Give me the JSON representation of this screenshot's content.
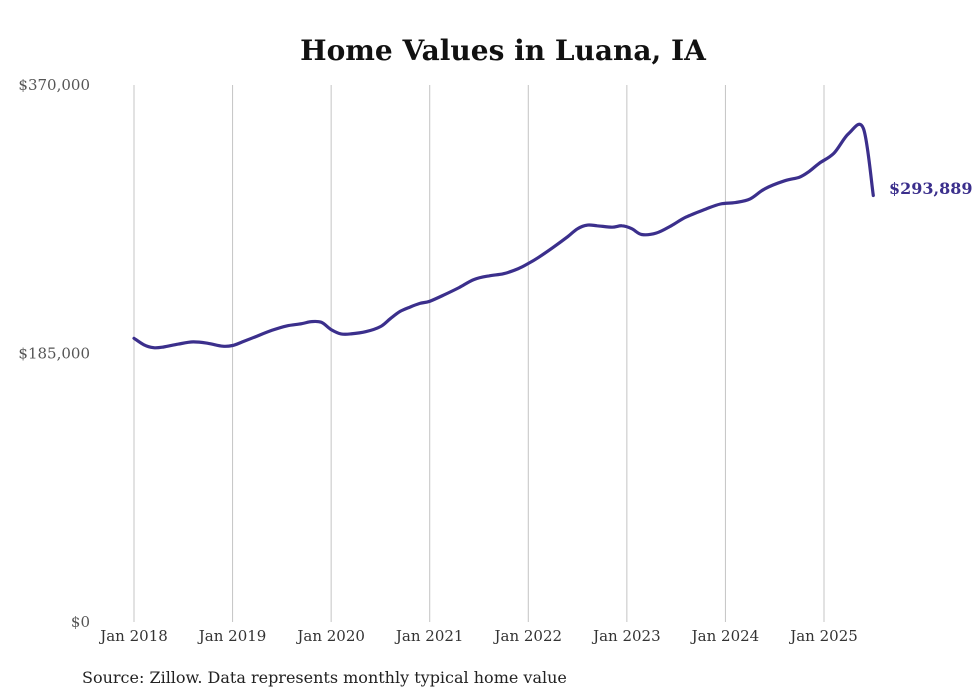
{
  "chart_data": {
    "type": "line",
    "title": "Home Values in Luana, IA",
    "xlabel": "",
    "ylabel": "",
    "ylim": [
      0,
      370000
    ],
    "yticks": [
      {
        "value": 0,
        "label": "$0"
      },
      {
        "value": 185000,
        "label": "$185,000"
      },
      {
        "value": 370000,
        "label": "$370,000"
      }
    ],
    "xticks": [
      {
        "value": 2018,
        "label": "Jan 2018"
      },
      {
        "value": 2019,
        "label": "Jan 2019"
      },
      {
        "value": 2020,
        "label": "Jan 2020"
      },
      {
        "value": 2021,
        "label": "Jan 2021"
      },
      {
        "value": 2022,
        "label": "Jan 2022"
      },
      {
        "value": 2023,
        "label": "Jan 2023"
      },
      {
        "value": 2024,
        "label": "Jan 2024"
      },
      {
        "value": 2025,
        "label": "Jan 2025"
      }
    ],
    "xlim": [
      2017.85,
      2025.85
    ],
    "grid": "vertical",
    "legend": "none",
    "line_color": "#3b2f8c",
    "end_label": "$293,889",
    "series": [
      {
        "x": [
          2018.0,
          2018.1,
          2018.2,
          2018.3,
          2018.45,
          2018.6,
          2018.75,
          2018.9,
          2019.0,
          2019.1,
          2019.25,
          2019.4,
          2019.55,
          2019.7,
          2019.8,
          2019.9,
          2020.0,
          2020.1,
          2020.2,
          2020.35,
          2020.5,
          2020.6,
          2020.7,
          2020.8,
          2020.9,
          2021.0,
          2021.15,
          2021.3,
          2021.45,
          2021.6,
          2021.75,
          2021.9,
          2022.0,
          2022.1,
          2022.25,
          2022.4,
          2022.5,
          2022.6,
          2022.7,
          2022.85,
          2022.95,
          2023.05,
          2023.15,
          2023.3,
          2023.45,
          2023.6,
          2023.8,
          2023.95,
          2024.1,
          2024.25,
          2024.4,
          2024.6,
          2024.75,
          2024.85,
          2024.95,
          2025.1,
          2025.25,
          2025.4,
          2025.5
        ],
        "y": [
          195500,
          191000,
          189000,
          189500,
          191500,
          193000,
          192000,
          190000,
          190500,
          193000,
          197000,
          201000,
          204000,
          205500,
          207000,
          206500,
          201500,
          198500,
          198500,
          200000,
          203500,
          209000,
          214000,
          217000,
          219500,
          221000,
          225500,
          230500,
          236000,
          238500,
          240000,
          243500,
          247000,
          251000,
          258000,
          265500,
          271000,
          273500,
          273000,
          272000,
          273000,
          271000,
          267000,
          268000,
          273000,
          279000,
          284500,
          288000,
          289000,
          291500,
          298500,
          304000,
          306500,
          310500,
          316000,
          323000,
          336500,
          340000,
          293889
        ]
      }
    ]
  },
  "footer": {
    "source": "Source: Zillow. Data represents monthly typical home value"
  }
}
